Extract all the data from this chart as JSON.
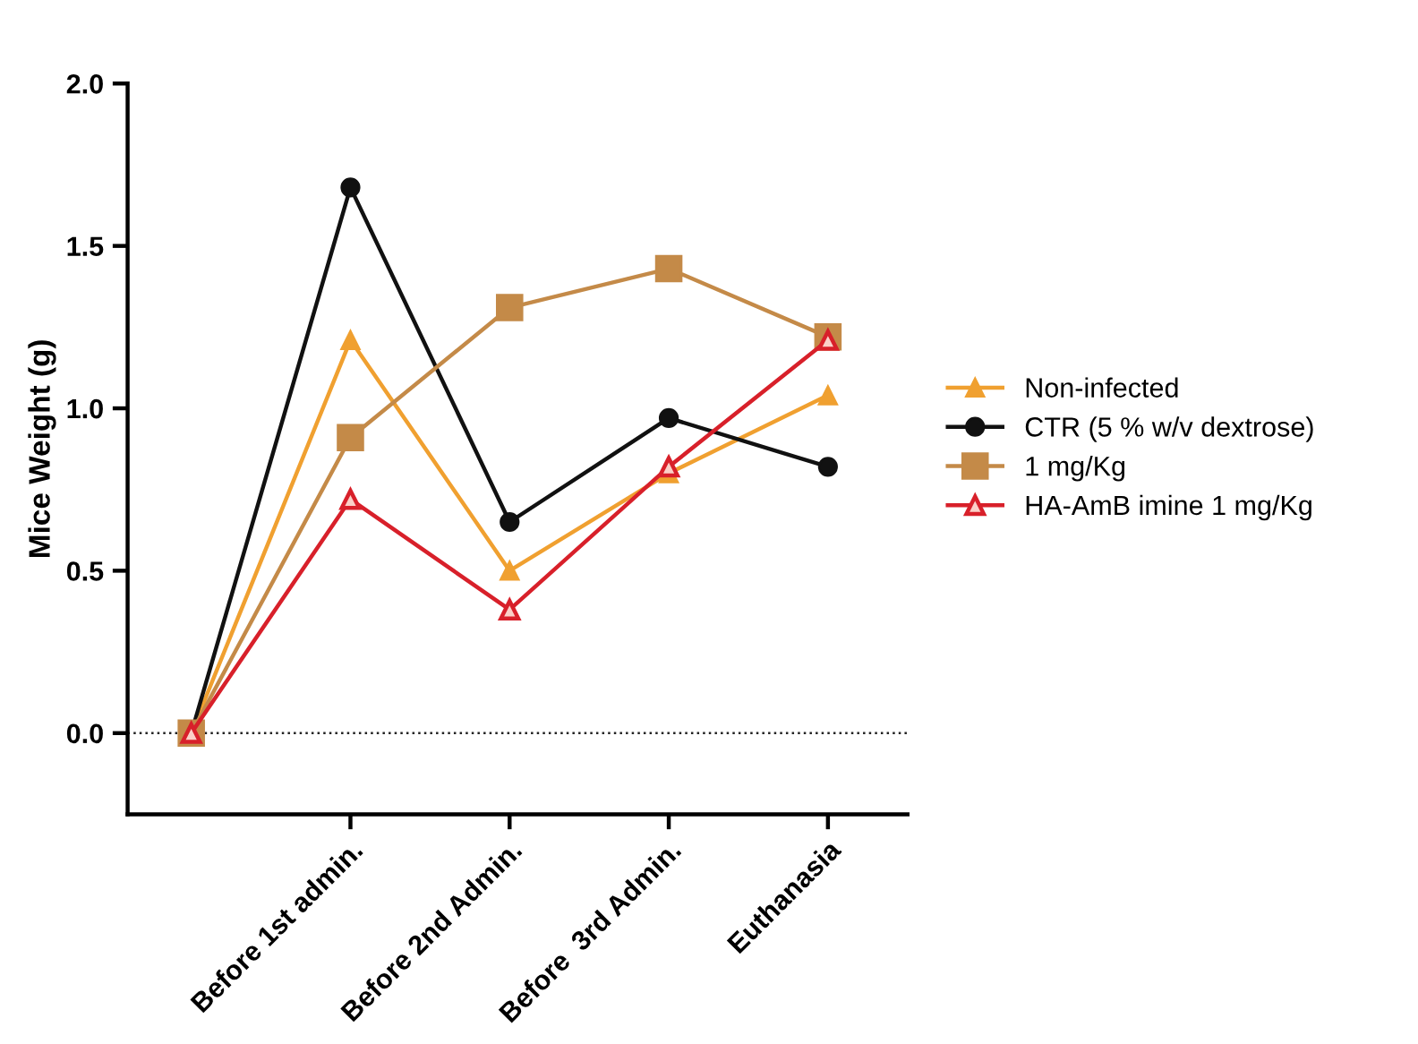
{
  "chart_data": {
    "type": "line",
    "ylabel": "Mice Weight (g)",
    "categories": [
      null,
      "Before 1st admin.",
      "Before 2nd Admin.",
      "Before  3rd Admin.",
      "Euthanasia"
    ],
    "series": [
      {
        "name": "Non-infected",
        "color": "#f0a030",
        "marker": "triangle",
        "values": [
          0,
          1.21,
          0.5,
          0.8,
          1.04
        ]
      },
      {
        "name": "CTR (5 % w/v dextrose)",
        "color": "#111111",
        "marker": "circle",
        "values": [
          0,
          1.68,
          0.65,
          0.97,
          0.82
        ]
      },
      {
        "name": "1 mg/Kg",
        "color": "#c48a48",
        "marker": "square",
        "values": [
          0,
          0.91,
          1.31,
          1.43,
          1.22
        ]
      },
      {
        "name": "HA-AmB imine 1 mg/Kg",
        "color": "#d8202a",
        "marker": "triangle",
        "values": [
          0,
          0.72,
          0.38,
          0.82,
          1.21
        ]
      }
    ],
    "ylim": [
      -0.25,
      2.0
    ],
    "yticks": [
      {
        "value": 0,
        "label": "0.0"
      },
      0.5,
      {
        "value": 1,
        "label": "1.0"
      },
      1.5,
      {
        "value": 2,
        "label": "2.0"
      }
    ],
    "ref_lines": [
      {
        "axis": "y",
        "value": 0,
        "color": "#222222",
        "line_style": "dotted"
      }
    ],
    "grid": false,
    "legend": "right",
    "line_style": "solid"
  }
}
